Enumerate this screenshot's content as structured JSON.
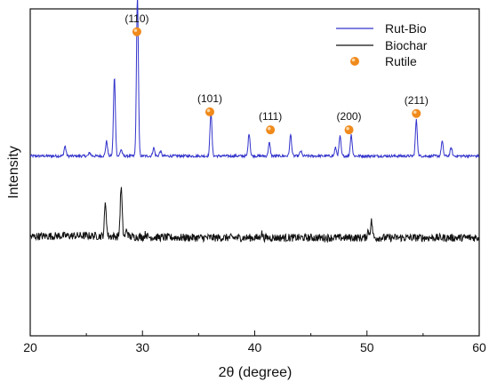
{
  "chart_data": {
    "type": "line",
    "title": "",
    "xlabel": "2θ (degree)",
    "ylabel": "Intensity",
    "xlim": [
      20,
      60
    ],
    "y_ticks_shown": false,
    "x_ticks": [
      20,
      30,
      40,
      50,
      60
    ],
    "x_tick_labels": [
      "20",
      "30",
      "40",
      "50",
      "60"
    ],
    "grid": false,
    "legend_position": "top-right",
    "legend": [
      {
        "label": "Rut-Bio",
        "kind": "line",
        "color": "#3333cc"
      },
      {
        "label": "Biochar",
        "kind": "line",
        "color": "#111111"
      },
      {
        "label": "Rutile",
        "kind": "marker",
        "color": "#f08a1c"
      }
    ],
    "series": [
      {
        "name": "Rut-Bio",
        "color": "#3333cc",
        "baseline": 0.55,
        "noise": 0.004,
        "peaks": [
          {
            "x": 23.1,
            "h": 0.03
          },
          {
            "x": 25.3,
            "h": 0.01
          },
          {
            "x": 26.8,
            "h": 0.045
          },
          {
            "x": 27.5,
            "h": 0.24
          },
          {
            "x": 28.1,
            "h": 0.02
          },
          {
            "x": 29.55,
            "h": 0.49
          },
          {
            "x": 31.0,
            "h": 0.025
          },
          {
            "x": 31.6,
            "h": 0.015
          },
          {
            "x": 36.1,
            "h": 0.135
          },
          {
            "x": 39.5,
            "h": 0.07
          },
          {
            "x": 41.3,
            "h": 0.04
          },
          {
            "x": 43.2,
            "h": 0.065
          },
          {
            "x": 44.1,
            "h": 0.015
          },
          {
            "x": 47.2,
            "h": 0.025
          },
          {
            "x": 47.6,
            "h": 0.06
          },
          {
            "x": 48.6,
            "h": 0.065
          },
          {
            "x": 54.4,
            "h": 0.11
          },
          {
            "x": 56.7,
            "h": 0.045
          },
          {
            "x": 57.5,
            "h": 0.025
          }
        ]
      },
      {
        "name": "Biochar",
        "color": "#111111",
        "baseline": 0.3,
        "noise": 0.012,
        "peaks": [
          {
            "x": 26.7,
            "h": 0.1
          },
          {
            "x": 28.1,
            "h": 0.15
          },
          {
            "x": 28.6,
            "h": 0.02
          },
          {
            "x": 30.3,
            "h": 0.01
          },
          {
            "x": 40.6,
            "h": 0.015
          },
          {
            "x": 50.1,
            "h": 0.02
          },
          {
            "x": 50.4,
            "h": 0.05
          }
        ]
      }
    ],
    "rutile_markers": [
      {
        "x": 29.5,
        "y": 0.93,
        "label": "(110)"
      },
      {
        "x": 36.0,
        "y": 0.685,
        "label": "(101)"
      },
      {
        "x": 41.4,
        "y": 0.63,
        "label": "(111)"
      },
      {
        "x": 48.4,
        "y": 0.63,
        "label": "(200)"
      },
      {
        "x": 54.4,
        "y": 0.68,
        "label": "(211)"
      }
    ],
    "marker_color": "#f08a1c"
  }
}
